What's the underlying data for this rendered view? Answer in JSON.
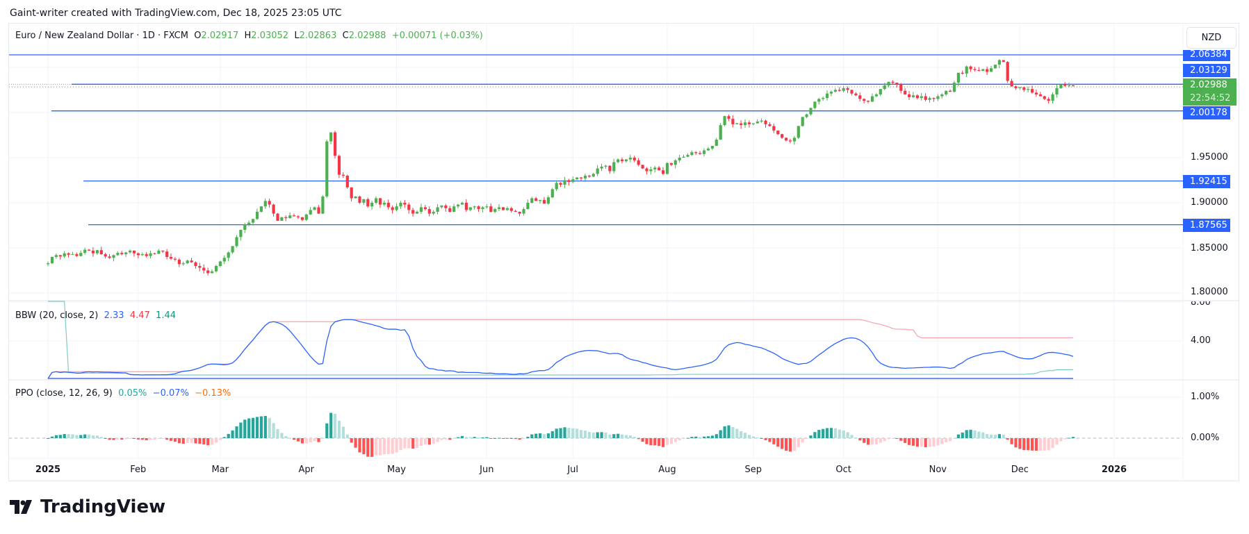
{
  "header": {
    "attribution": "Gaint-writer created with TradingView.com, Dec 18, 2025 23:05 UTC"
  },
  "legend": {
    "symbol": "Euro / New Zealand Dollar · 1D · FXCM",
    "o_label": "O",
    "o": "2.02917",
    "h_label": "H",
    "h": "2.03052",
    "l_label": "L",
    "l": "2.02863",
    "c_label": "C",
    "c": "2.02988",
    "change": "+0.00071 (+0.03%)"
  },
  "currency_button": "NZD",
  "price_axis": {
    "ticks": [
      "1.95000",
      "1.90000",
      "1.85000",
      "1.80000"
    ],
    "lines": [
      "2.06384",
      "2.03129",
      "2.00178",
      "1.92415",
      "1.87565"
    ],
    "last_price": "2.02988",
    "countdown": "22:54:52"
  },
  "bbw": {
    "label": "BBW (20, close, 2)",
    "values": [
      "2.33",
      "4.47",
      "1.44"
    ],
    "ticks": [
      "8.00",
      "4.00"
    ]
  },
  "ppo": {
    "label": "PPO (close, 12, 26, 9)",
    "values": [
      "0.05%",
      "−0.07%",
      "−0.13%"
    ],
    "ticks": [
      "1.00%",
      "0.00%"
    ]
  },
  "time_axis": {
    "labels": [
      "2025",
      "Feb",
      "Mar",
      "Apr",
      "May",
      "Jun",
      "Jul",
      "Aug",
      "Sep",
      "Oct",
      "Nov",
      "Dec",
      "2026"
    ]
  },
  "footer": {
    "logo": "TradingView"
  },
  "chart_data": {
    "type": "candlestick",
    "title": "Euro / New Zealand Dollar · 1D · FXCM",
    "ylim": [
      1.795,
      2.08
    ],
    "grid": true,
    "colors": {
      "up": "#4caf50",
      "down": "#f23645",
      "hline": "#2962ff",
      "bbw": "#2962ff",
      "bbw_high": "#f7a1a8",
      "bbw_low": "#80cbc4",
      "ppo": "#2962ff",
      "signal": "#ff6d00",
      "hist_up_strong": "#26a69a",
      "hist_up_weak": "#b2dfdb",
      "hist_dn_strong": "#ff5252",
      "hist_dn_weak": "#ffcdd2"
    },
    "horizontal_lines": [
      2.06384,
      2.03129,
      2.00178,
      1.92415,
      1.87565
    ],
    "months": [
      {
        "label": "2025",
        "closes": [
          1.833,
          1.84,
          1.842,
          1.8405,
          1.844,
          1.8425,
          1.843,
          1.841,
          1.8445,
          1.848,
          1.847,
          1.844,
          1.8475,
          1.843,
          1.8405,
          1.839,
          1.842,
          1.8445,
          1.843,
          1.845,
          1.847,
          1.844
        ]
      },
      {
        "label": "Feb",
        "closes": [
          1.842,
          1.843,
          1.841,
          1.844,
          1.8435,
          1.847,
          1.846,
          1.84,
          1.838,
          1.837,
          1.832,
          1.833,
          1.836,
          1.834,
          1.83,
          1.828,
          1.825,
          1.822,
          1.824,
          1.83
        ]
      },
      {
        "label": "Mar",
        "closes": [
          1.835,
          1.839,
          1.845,
          1.852,
          1.862,
          1.87,
          1.876,
          1.878,
          1.882,
          1.89,
          1.896,
          1.902,
          1.898,
          1.888,
          1.88,
          1.884,
          1.883,
          1.886,
          1.885,
          1.884,
          1.881
        ]
      },
      {
        "label": "Apr",
        "closes": [
          1.887,
          1.892,
          1.895,
          1.888,
          1.907,
          1.968,
          1.978,
          1.952,
          1.931,
          1.93,
          1.917,
          1.905,
          1.907,
          1.9,
          1.904,
          1.896,
          1.9,
          1.905,
          1.898,
          1.9,
          1.895,
          1.892
        ]
      },
      {
        "label": "May",
        "closes": [
          1.896,
          1.9,
          1.898,
          1.892,
          1.888,
          1.89,
          1.895,
          1.893,
          1.888,
          1.89,
          1.895,
          1.897,
          1.894,
          1.89,
          1.896,
          1.898,
          1.9,
          1.892,
          1.895,
          1.896,
          1.893,
          1.895
        ]
      },
      {
        "label": "Jun",
        "closes": [
          1.896,
          1.89,
          1.893,
          1.895,
          1.892,
          1.894,
          1.891,
          1.89,
          1.888,
          1.893,
          1.9,
          1.905,
          1.902,
          1.903,
          1.899,
          1.906,
          1.915,
          1.922,
          1.92,
          1.925,
          1.923
        ]
      },
      {
        "label": "Jul",
        "closes": [
          1.926,
          1.928,
          1.927,
          1.93,
          1.929,
          1.932,
          1.938,
          1.94,
          1.941,
          1.935,
          1.945,
          1.948,
          1.946,
          1.948,
          1.95,
          1.947,
          1.942,
          1.938,
          1.935,
          1.937,
          1.939,
          1.936,
          1.932
        ]
      },
      {
        "label": "Aug",
        "closes": [
          1.944,
          1.942,
          1.947,
          1.95,
          1.951,
          1.953,
          1.956,
          1.955,
          1.954,
          1.958,
          1.96,
          1.963,
          1.97,
          1.986,
          1.996,
          1.993,
          1.987,
          1.988,
          1.986,
          1.989,
          1.987
        ]
      },
      {
        "label": "Sep",
        "closes": [
          1.988,
          1.99,
          1.991,
          1.987,
          1.985,
          1.98,
          1.976,
          1.972,
          1.969,
          1.968,
          1.972,
          1.985,
          1.995,
          1.998,
          2.005,
          2.012,
          2.015,
          2.016,
          2.021,
          2.023,
          2.025,
          2.024
        ]
      },
      {
        "label": "Oct",
        "closes": [
          2.027,
          2.025,
          2.021,
          2.019,
          2.015,
          2.013,
          2.012,
          2.018,
          2.02,
          2.026,
          2.03,
          2.034,
          2.033,
          2.031,
          2.024,
          2.02,
          2.017,
          2.019,
          2.016,
          2.018,
          2.014,
          2.016,
          2.015
        ]
      },
      {
        "label": "Nov",
        "closes": [
          2.018,
          2.02,
          2.024,
          2.023,
          2.033,
          2.044,
          2.043,
          2.051,
          2.048,
          2.047,
          2.046,
          2.048,
          2.045,
          2.049,
          2.053,
          2.058,
          2.056,
          2.035,
          2.029,
          2.027
        ]
      },
      {
        "label": "Dec",
        "closes": [
          2.028,
          2.025,
          2.026,
          2.022,
          2.02,
          2.018,
          2.015,
          2.013,
          2.02,
          2.027,
          2.031,
          2.0295,
          2.03,
          2.02988
        ]
      }
    ]
  }
}
